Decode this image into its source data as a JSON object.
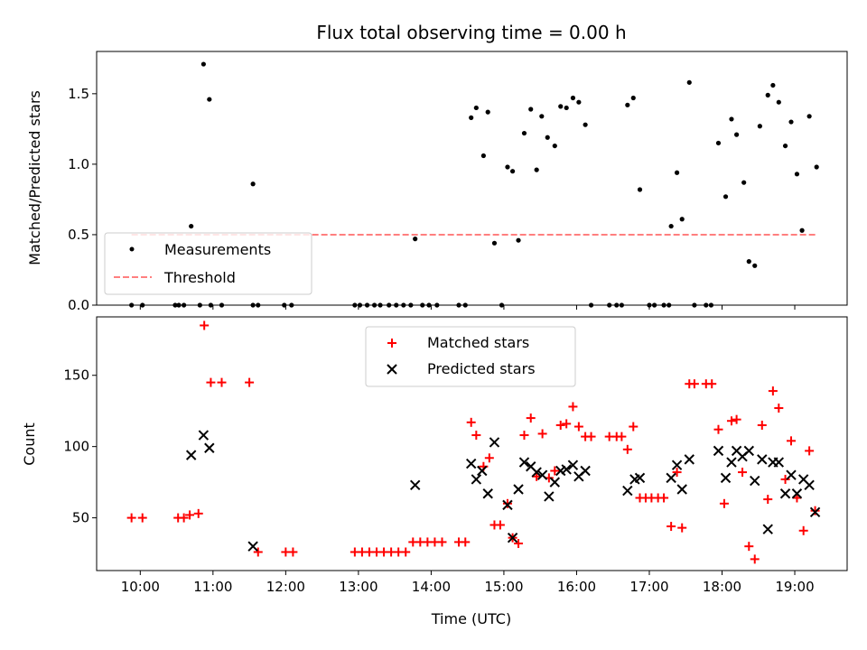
{
  "chart_data": [
    {
      "type": "scatter",
      "title": "Flux total observing time = 0.00 h",
      "xlabel": "",
      "ylabel": "Matched/Predicted stars",
      "xlim": [
        9.4,
        19.72
      ],
      "ylim": [
        0,
        1.8
      ],
      "yticks": [
        0.0,
        0.5,
        1.0,
        1.5
      ],
      "ytick_labels": [
        "0.0",
        "0.5",
        "1.0",
        "1.5"
      ],
      "legend_placement": "lower-left",
      "series": [
        {
          "name": "Measurements",
          "color": "#000000",
          "marker": "dot",
          "points": [
            [
              9.88,
              0
            ],
            [
              10.03,
              0
            ],
            [
              10.48,
              0
            ],
            [
              10.53,
              0
            ],
            [
              10.6,
              0
            ],
            [
              10.82,
              0
            ],
            [
              10.97,
              0
            ],
            [
              11.12,
              0
            ],
            [
              11.55,
              0
            ],
            [
              11.62,
              0
            ],
            [
              11.98,
              0
            ],
            [
              12.08,
              0
            ],
            [
              12.95,
              0
            ],
            [
              13.02,
              0
            ],
            [
              13.12,
              0
            ],
            [
              13.22,
              0
            ],
            [
              13.3,
              0
            ],
            [
              13.42,
              0
            ],
            [
              13.52,
              0
            ],
            [
              13.62,
              0
            ],
            [
              13.72,
              0
            ],
            [
              13.88,
              0
            ],
            [
              13.97,
              0
            ],
            [
              14.08,
              0
            ],
            [
              14.38,
              0
            ],
            [
              14.47,
              0
            ],
            [
              14.97,
              0
            ],
            [
              16.2,
              0
            ],
            [
              16.45,
              0
            ],
            [
              16.55,
              0
            ],
            [
              16.62,
              0
            ],
            [
              17.0,
              0
            ],
            [
              17.07,
              0
            ],
            [
              17.2,
              0
            ],
            [
              17.27,
              0
            ],
            [
              17.62,
              0
            ],
            [
              17.78,
              0
            ],
            [
              17.85,
              0
            ],
            [
              10.7,
              0.56
            ],
            [
              10.87,
              1.71
            ],
            [
              10.95,
              1.46
            ],
            [
              11.55,
              0.86
            ],
            [
              13.78,
              0.47
            ],
            [
              14.55,
              1.33
            ],
            [
              14.62,
              1.4
            ],
            [
              14.72,
              1.06
            ],
            [
              14.78,
              1.37
            ],
            [
              14.87,
              0.44
            ],
            [
              15.05,
              0.98
            ],
            [
              15.12,
              0.95
            ],
            [
              15.2,
              0.46
            ],
            [
              15.28,
              1.22
            ],
            [
              15.37,
              1.39
            ],
            [
              15.45,
              0.96
            ],
            [
              15.52,
              1.34
            ],
            [
              15.6,
              1.19
            ],
            [
              15.7,
              1.13
            ],
            [
              15.78,
              1.41
            ],
            [
              15.86,
              1.4
            ],
            [
              15.95,
              1.47
            ],
            [
              16.03,
              1.44
            ],
            [
              16.12,
              1.28
            ],
            [
              16.7,
              1.42
            ],
            [
              16.78,
              1.47
            ],
            [
              16.87,
              0.82
            ],
            [
              17.3,
              0.56
            ],
            [
              17.38,
              0.94
            ],
            [
              17.45,
              0.61
            ],
            [
              17.55,
              1.58
            ],
            [
              17.95,
              1.15
            ],
            [
              18.05,
              0.77
            ],
            [
              18.13,
              1.32
            ],
            [
              18.2,
              1.21
            ],
            [
              18.3,
              0.87
            ],
            [
              18.37,
              0.31
            ],
            [
              18.45,
              0.28
            ],
            [
              18.52,
              1.27
            ],
            [
              18.63,
              1.49
            ],
            [
              18.7,
              1.56
            ],
            [
              18.78,
              1.44
            ],
            [
              18.87,
              1.13
            ],
            [
              18.95,
              1.3
            ],
            [
              19.03,
              0.93
            ],
            [
              19.1,
              0.53
            ],
            [
              19.2,
              1.34
            ],
            [
              19.3,
              0.98
            ]
          ]
        },
        {
          "name": "Threshold",
          "color": "#ff7f7f",
          "style": "dashed",
          "points": [
            [
              9.88,
              0.5
            ],
            [
              19.3,
              0.5
            ]
          ]
        }
      ]
    },
    {
      "type": "scatter",
      "title": "",
      "xlabel": "Time (UTC)",
      "ylabel": "Count",
      "xlim": [
        9.4,
        19.72
      ],
      "ylim": [
        13,
        191
      ],
      "xticks": [
        10,
        11,
        12,
        13,
        14,
        15,
        16,
        17,
        18,
        19
      ],
      "xtick_labels": [
        "10:00",
        "11:00",
        "12:00",
        "13:00",
        "14:00",
        "15:00",
        "16:00",
        "17:00",
        "18:00",
        "19:00"
      ],
      "yticks": [
        50,
        100,
        150
      ],
      "ytick_labels": [
        "50",
        "100",
        "150"
      ],
      "legend_placement": "upper-center",
      "series": [
        {
          "name": "Matched stars",
          "color": "#ff0000",
          "marker": "plus",
          "points": [
            [
              9.88,
              50
            ],
            [
              10.03,
              50
            ],
            [
              10.52,
              50
            ],
            [
              10.6,
              50
            ],
            [
              10.68,
              52
            ],
            [
              10.8,
              53
            ],
            [
              10.88,
              185
            ],
            [
              10.97,
              145
            ],
            [
              11.12,
              145
            ],
            [
              11.5,
              145
            ],
            [
              11.62,
              26
            ],
            [
              12.0,
              26
            ],
            [
              12.1,
              26
            ],
            [
              12.95,
              26
            ],
            [
              13.05,
              26
            ],
            [
              13.15,
              26
            ],
            [
              13.25,
              26
            ],
            [
              13.35,
              26
            ],
            [
              13.45,
              26
            ],
            [
              13.55,
              26
            ],
            [
              13.65,
              26
            ],
            [
              13.75,
              33
            ],
            [
              13.85,
              33
            ],
            [
              13.95,
              33
            ],
            [
              14.05,
              33
            ],
            [
              14.15,
              33
            ],
            [
              14.38,
              33
            ],
            [
              14.47,
              33
            ],
            [
              14.55,
              117
            ],
            [
              14.62,
              108
            ],
            [
              14.72,
              86
            ],
            [
              14.8,
              92
            ],
            [
              14.87,
              45
            ],
            [
              14.95,
              45
            ],
            [
              15.05,
              60
            ],
            [
              15.12,
              36
            ],
            [
              15.2,
              32
            ],
            [
              15.28,
              108
            ],
            [
              15.37,
              120
            ],
            [
              15.45,
              79
            ],
            [
              15.53,
              109
            ],
            [
              15.62,
              78
            ],
            [
              15.7,
              83
            ],
            [
              15.78,
              115
            ],
            [
              15.86,
              116
            ],
            [
              15.95,
              128
            ],
            [
              16.03,
              114
            ],
            [
              16.12,
              107
            ],
            [
              16.2,
              107
            ],
            [
              16.45,
              107
            ],
            [
              16.55,
              107
            ],
            [
              16.62,
              107
            ],
            [
              16.7,
              98
            ],
            [
              16.78,
              114
            ],
            [
              16.87,
              64
            ],
            [
              16.95,
              64
            ],
            [
              17.03,
              64
            ],
            [
              17.12,
              64
            ],
            [
              17.2,
              64
            ],
            [
              17.3,
              44
            ],
            [
              17.38,
              82
            ],
            [
              17.45,
              43
            ],
            [
              17.55,
              144
            ],
            [
              17.62,
              144
            ],
            [
              17.78,
              144
            ],
            [
              17.86,
              144
            ],
            [
              17.95,
              112
            ],
            [
              18.03,
              60
            ],
            [
              18.13,
              118
            ],
            [
              18.2,
              119
            ],
            [
              18.28,
              82
            ],
            [
              18.37,
              30
            ],
            [
              18.45,
              21
            ],
            [
              18.55,
              115
            ],
            [
              18.63,
              63
            ],
            [
              18.7,
              139
            ],
            [
              18.78,
              127
            ],
            [
              18.87,
              77
            ],
            [
              18.95,
              104
            ],
            [
              19.03,
              64
            ],
            [
              19.12,
              41
            ],
            [
              19.2,
              97
            ],
            [
              19.28,
              55
            ]
          ]
        },
        {
          "name": "Predicted stars",
          "color": "#000000",
          "marker": "x",
          "points": [
            [
              10.7,
              94
            ],
            [
              10.87,
              108
            ],
            [
              10.95,
              99
            ],
            [
              11.55,
              30
            ],
            [
              13.78,
              73
            ],
            [
              14.55,
              88
            ],
            [
              14.62,
              77
            ],
            [
              14.7,
              83
            ],
            [
              14.78,
              67
            ],
            [
              14.87,
              103
            ],
            [
              15.05,
              59
            ],
            [
              15.12,
              36
            ],
            [
              15.2,
              70
            ],
            [
              15.28,
              89
            ],
            [
              15.37,
              86
            ],
            [
              15.45,
              82
            ],
            [
              15.53,
              80
            ],
            [
              15.62,
              65
            ],
            [
              15.7,
              75
            ],
            [
              15.78,
              83
            ],
            [
              15.86,
              84
            ],
            [
              15.95,
              87
            ],
            [
              16.03,
              79
            ],
            [
              16.12,
              83
            ],
            [
              16.7,
              69
            ],
            [
              16.8,
              77
            ],
            [
              16.87,
              78
            ],
            [
              17.3,
              78
            ],
            [
              17.38,
              87
            ],
            [
              17.45,
              70
            ],
            [
              17.55,
              91
            ],
            [
              17.95,
              97
            ],
            [
              18.05,
              78
            ],
            [
              18.13,
              89
            ],
            [
              18.2,
              97
            ],
            [
              18.28,
              93
            ],
            [
              18.37,
              97
            ],
            [
              18.45,
              76
            ],
            [
              18.55,
              91
            ],
            [
              18.63,
              42
            ],
            [
              18.7,
              89
            ],
            [
              18.78,
              89
            ],
            [
              18.87,
              67
            ],
            [
              18.95,
              80
            ],
            [
              19.03,
              67
            ],
            [
              19.12,
              77
            ],
            [
              19.2,
              73
            ],
            [
              19.28,
              54
            ]
          ]
        }
      ]
    }
  ]
}
